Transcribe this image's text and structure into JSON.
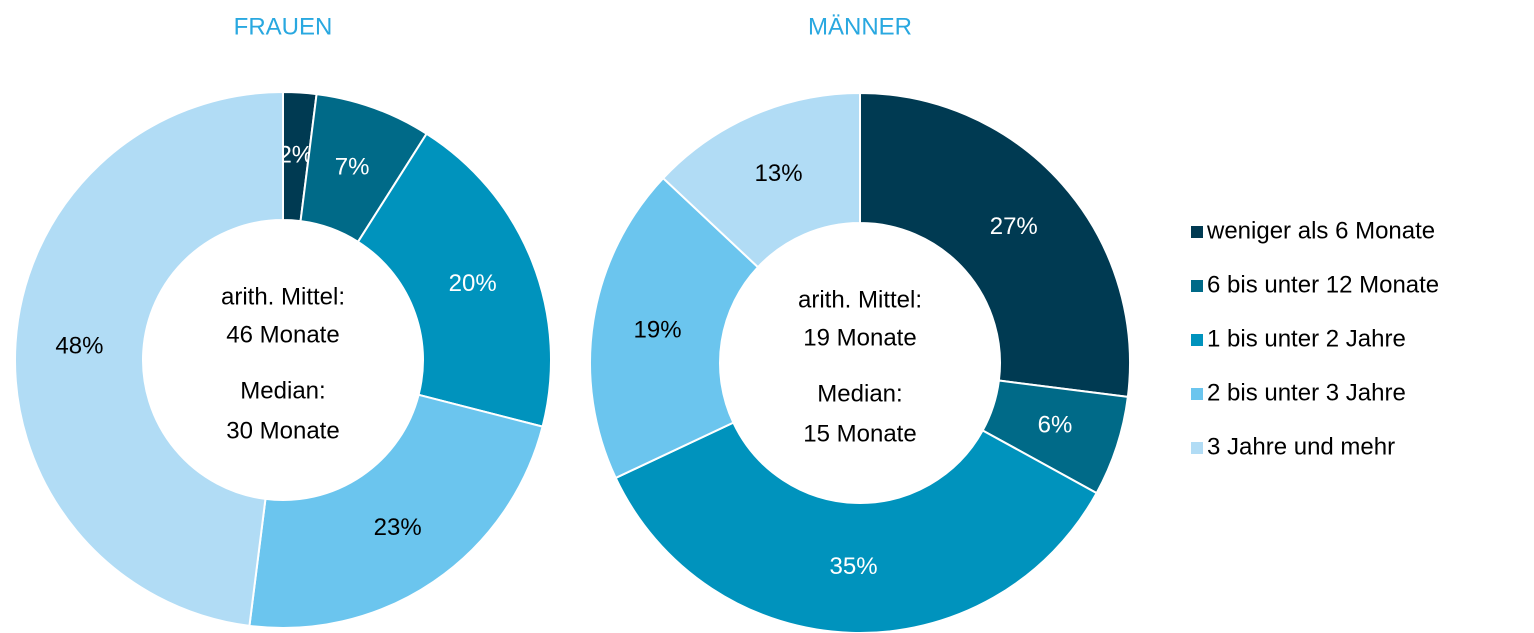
{
  "chart_data": [
    {
      "type": "pie",
      "title": "FRAUEN",
      "values": [
        2,
        7,
        20,
        23,
        48
      ],
      "value_labels": [
        "2%",
        "7%",
        "20%",
        "23%",
        "48%"
      ],
      "annotations": [
        "arith. Mittel:",
        "46 Monate",
        "Median:",
        "30 Monate"
      ]
    },
    {
      "type": "pie",
      "title": "MÄNNER",
      "values": [
        27,
        6,
        35,
        19,
        13
      ],
      "value_labels": [
        "27%",
        "6%",
        "35%",
        "19%",
        "13%"
      ],
      "annotations": [
        "arith. Mittel:",
        "19 Monate",
        "Median:",
        "15 Monate"
      ]
    }
  ],
  "legend": {
    "categories": [
      "weniger als 6 Monate",
      "6 bis unter 12 Monate",
      "1 bis unter 2 Jahre",
      "2 bis unter 3 Jahre",
      "3 Jahre und mehr"
    ],
    "colors": [
      "#003a52",
      "#006a88",
      "#0093bd",
      "#6bc5ee",
      "#b1dcf5"
    ]
  }
}
